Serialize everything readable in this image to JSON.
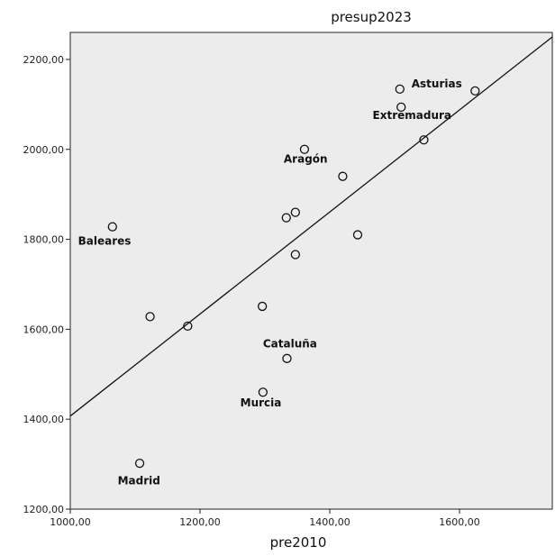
{
  "chart_data": {
    "type": "scatter",
    "title": "presup2023",
    "xlabel": "pre2010",
    "ylabel": "",
    "xlim": [
      1000,
      1743
    ],
    "ylim": [
      1200,
      2260
    ],
    "xticks": [
      1000,
      1200,
      1400,
      1600
    ],
    "yticks": [
      1200,
      1400,
      1600,
      1800,
      2000,
      2200
    ],
    "xtick_labels": [
      "1000,00",
      "1200,00",
      "1400,00",
      "1600,00"
    ],
    "ytick_labels": [
      "1200,00",
      "1400,00",
      "1600,00",
      "1800,00",
      "2000,00",
      "2200,00"
    ],
    "grid": false,
    "background": "#ececec",
    "marker": "hollow-circle",
    "fit_line": {
      "x": [
        1000,
        1743
      ],
      "y": [
        1407,
        2250
      ]
    },
    "points": [
      {
        "x": 1065,
        "y": 1828
      },
      {
        "x": 1107,
        "y": 1302
      },
      {
        "x": 1123,
        "y": 1628
      },
      {
        "x": 1181,
        "y": 1607
      },
      {
        "x": 1296,
        "y": 1651
      },
      {
        "x": 1297,
        "y": 1460
      },
      {
        "x": 1333,
        "y": 1848
      },
      {
        "x": 1334,
        "y": 1535
      },
      {
        "x": 1347,
        "y": 1860
      },
      {
        "x": 1347,
        "y": 1766
      },
      {
        "x": 1361,
        "y": 2000
      },
      {
        "x": 1420,
        "y": 1940
      },
      {
        "x": 1443,
        "y": 1810
      },
      {
        "x": 1508,
        "y": 2134
      },
      {
        "x": 1510,
        "y": 2094
      },
      {
        "x": 1545,
        "y": 2021
      },
      {
        "x": 1624,
        "y": 2130
      }
    ],
    "annotations": [
      {
        "text": "Asturias",
        "x": 1526,
        "y": 2138
      },
      {
        "text": "Extremadura",
        "x": 1466,
        "y": 2068
      },
      {
        "text": "Aragón",
        "x": 1329,
        "y": 1970
      },
      {
        "text": "Baleares",
        "x": 1012,
        "y": 1788
      },
      {
        "text": "Cataluña",
        "x": 1297,
        "y": 1560
      },
      {
        "text": "Murcia",
        "x": 1262,
        "y": 1428
      },
      {
        "text": "Madrid",
        "x": 1073,
        "y": 1255
      }
    ]
  }
}
